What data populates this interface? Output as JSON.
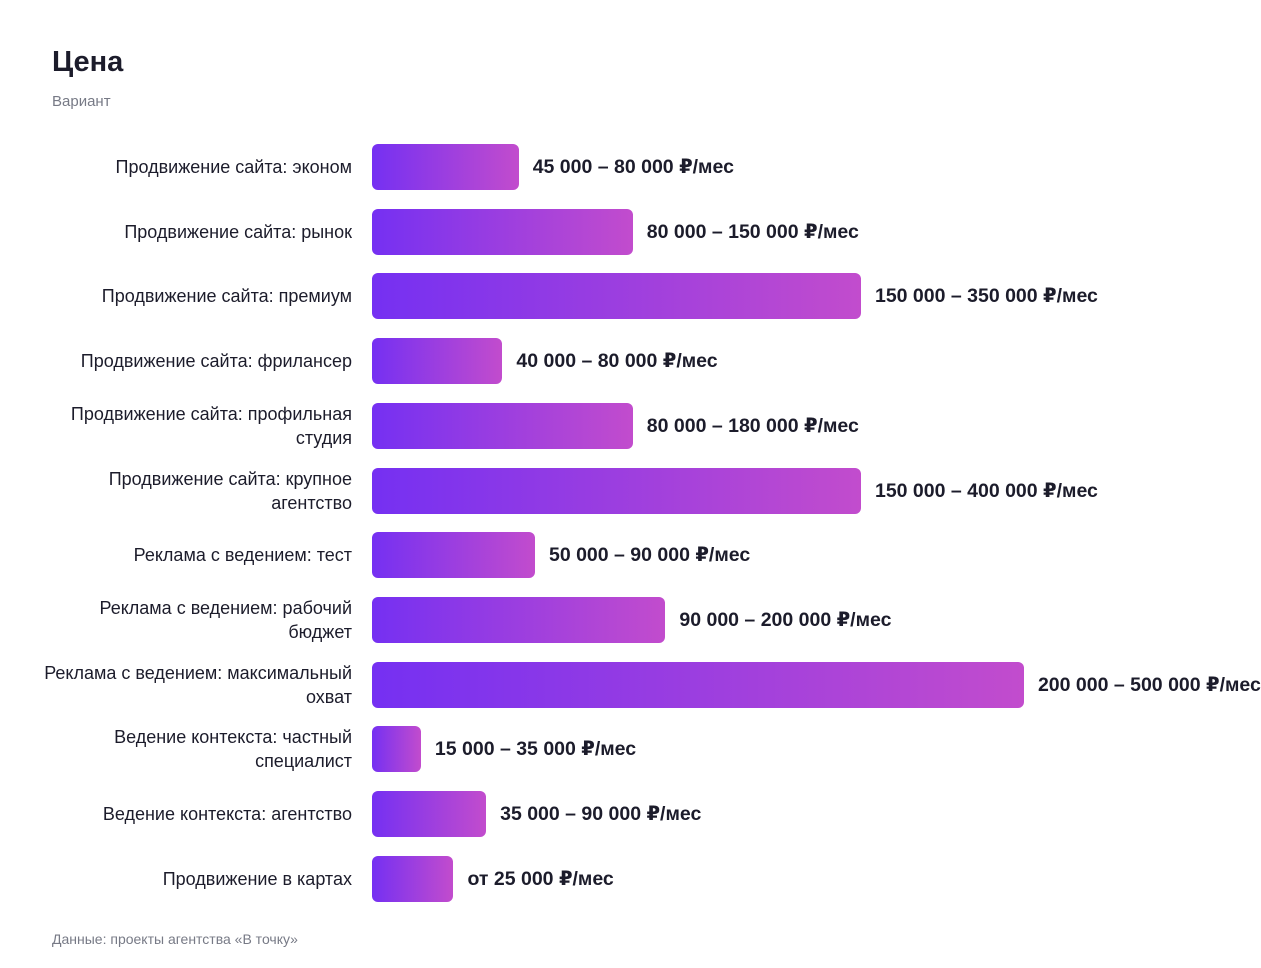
{
  "chart_data": {
    "type": "bar",
    "orientation": "horizontal",
    "title": "Цена",
    "subtitle": "Вариант",
    "categories": [
      "Продвижение сайта: эконом",
      "Продвижение сайта: рынок",
      "Продвижение сайта: премиум",
      "Продвижение сайта: фрилансер",
      "Продвижение сайта: профильная студия",
      "Продвижение сайта: крупное агентство",
      "Реклама с ведением: тест",
      "Реклама с ведением: рабочий бюджет",
      "Реклама с ведением: максимальный охват",
      "Ведение контекста: частный специалист",
      "Ведение контекста: агентство",
      "Продвижение в картах"
    ],
    "values": [
      45000,
      80000,
      150000,
      40000,
      80000,
      150000,
      50000,
      90000,
      200000,
      15000,
      35000,
      25000
    ],
    "value_labels": [
      "45 000 – 80 000 ₽/мес",
      "80 000 – 150 000 ₽/мес",
      "150 000 – 350 000 ₽/мес",
      "40 000 – 80 000 ₽/мес",
      "80 000 – 180 000 ₽/мес",
      "150 000 – 400 000 ₽/мес",
      "50 000 – 90 000 ₽/мес",
      "90 000 – 200 000 ₽/мес",
      "200 000 – 500 000 ₽/мес",
      "15 000 – 35 000 ₽/мес",
      "35 000 – 90 000 ₽/мес",
      "от 25 000 ₽/мес"
    ],
    "gradient": [
      "#7530f2",
      "#c24ccd"
    ],
    "xlim": [
      0,
      254000
    ],
    "source": "Данные: проекты агентства «В точку»"
  }
}
